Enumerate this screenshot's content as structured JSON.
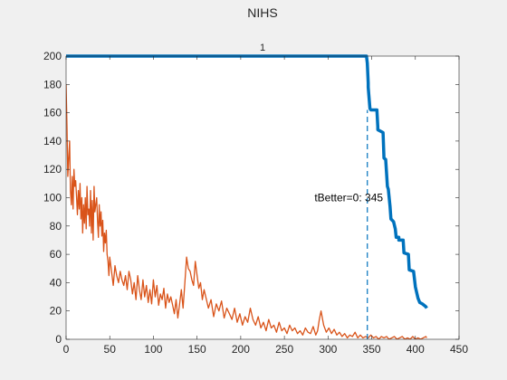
{
  "colors": {
    "background": "#f0f0f0",
    "axes_background": "#ffffff",
    "series_blue": "#0072bd",
    "series_orange": "#d95319",
    "marker_line": "#0072bd",
    "axis": "#262626"
  },
  "chart_data": {
    "type": "line",
    "title": "NIHS",
    "subtitle": "1",
    "xlabel": "",
    "ylabel": "",
    "xlim": [
      0,
      450
    ],
    "ylim": [
      0,
      200
    ],
    "xticks": [
      0,
      50,
      100,
      150,
      200,
      250,
      300,
      350,
      400,
      450
    ],
    "yticks": [
      0,
      20,
      40,
      60,
      80,
      100,
      120,
      140,
      160,
      180,
      200
    ],
    "xtick_labels": [
      "0",
      "50",
      "100",
      "150",
      "200",
      "250",
      "300",
      "350",
      "400",
      "450"
    ],
    "ytick_labels": [
      "0",
      "20",
      "40",
      "60",
      "80",
      "100",
      "120",
      "140",
      "160",
      "180",
      "200"
    ],
    "grid": false,
    "legend": "none",
    "series": [
      {
        "color": "#0072bd",
        "line_width": "thick",
        "x": [
          0,
          344,
          345,
          346,
          346,
          348,
          349,
          356,
          357,
          357,
          363,
          364,
          366,
          368,
          369,
          371,
          372,
          375,
          377,
          378,
          381,
          381,
          382,
          386,
          387,
          392,
          393,
          398,
          400,
          403,
          405,
          408,
          410,
          412,
          413
        ],
        "y": [
          200,
          200,
          195,
          181,
          178,
          163,
          162,
          162,
          150,
          148,
          146,
          128,
          127,
          108,
          106,
          94,
          85,
          83,
          78,
          72,
          72,
          70,
          70,
          70,
          61,
          60,
          49,
          48,
          37,
          29,
          26,
          25,
          24,
          23,
          22
        ]
      },
      {
        "color": "#d95319",
        "line_width": "thin",
        "x": [
          0,
          1,
          2,
          3,
          4,
          5,
          6,
          7,
          8,
          9,
          10,
          11,
          12,
          13,
          14,
          15,
          16,
          17,
          18,
          19,
          20,
          21,
          22,
          23,
          24,
          25,
          26,
          27,
          28,
          29,
          30,
          31,
          32,
          33,
          34,
          35,
          36,
          37,
          38,
          39,
          40,
          41,
          42,
          43,
          44,
          45,
          46,
          47,
          48,
          49,
          50,
          52,
          54,
          56,
          58,
          60,
          62,
          64,
          66,
          68,
          70,
          72,
          74,
          76,
          78,
          80,
          82,
          84,
          86,
          88,
          90,
          92,
          94,
          96,
          98,
          100,
          102,
          104,
          106,
          108,
          110,
          112,
          114,
          116,
          118,
          120,
          122,
          124,
          126,
          128,
          130,
          132,
          134,
          136,
          138,
          140,
          142,
          144,
          146,
          148,
          150,
          152,
          154,
          156,
          158,
          160,
          163,
          166,
          169,
          172,
          175,
          178,
          181,
          184,
          187,
          190,
          193,
          196,
          199,
          202,
          205,
          208,
          211,
          214,
          217,
          220,
          223,
          226,
          229,
          232,
          235,
          238,
          241,
          244,
          247,
          250,
          253,
          256,
          259,
          262,
          265,
          268,
          271,
          274,
          277,
          280,
          283,
          286,
          288,
          290,
          292,
          295,
          298,
          301,
          304,
          307,
          310,
          313,
          316,
          319,
          322,
          325,
          328,
          331,
          334,
          337,
          340,
          343,
          346,
          349,
          352,
          355,
          358,
          361,
          364,
          367,
          370,
          373,
          376,
          379,
          382,
          385,
          388,
          391,
          394,
          397,
          400,
          403,
          406,
          409,
          412,
          413
        ],
        "y": [
          180,
          150,
          115,
          128,
          140,
          105,
          95,
          115,
          92,
          120,
          108,
          112,
          100,
          88,
          105,
          92,
          110,
          85,
          100,
          75,
          95,
          82,
          100,
          78,
          108,
          88,
          92,
          80,
          105,
          75,
          98,
          70,
          108,
          90,
          95,
          100,
          84,
          72,
          95,
          80,
          90,
          73,
          84,
          62,
          75,
          68,
          77,
          60,
          55,
          45,
          58,
          48,
          38,
          52,
          45,
          40,
          48,
          42,
          38,
          45,
          35,
          48,
          42,
          32,
          40,
          28,
          45,
          35,
          28,
          42,
          30,
          38,
          26,
          35,
          25,
          42,
          30,
          38,
          24,
          32,
          28,
          36,
          22,
          32,
          26,
          30,
          24,
          18,
          28,
          15,
          25,
          35,
          22,
          40,
          58,
          50,
          48,
          42,
          38,
          55,
          45,
          36,
          40,
          28,
          35,
          30,
          22,
          28,
          16,
          25,
          20,
          27,
          15,
          22,
          18,
          14,
          22,
          12,
          18,
          10,
          16,
          12,
          22,
          14,
          10,
          16,
          8,
          12,
          6,
          14,
          8,
          10,
          5,
          12,
          6,
          8,
          4,
          10,
          6,
          8,
          4,
          6,
          3,
          8,
          5,
          4,
          9,
          3,
          6,
          14,
          20,
          10,
          5,
          8,
          4,
          7,
          3,
          5,
          2,
          4,
          1,
          3,
          2,
          5,
          1,
          3,
          1,
          2,
          1,
          3,
          1,
          2,
          0,
          2,
          1,
          2,
          0,
          1,
          2,
          0,
          1,
          2,
          0,
          1,
          0,
          2,
          0,
          1,
          0,
          1,
          2,
          1
        ]
      }
    ],
    "vline": {
      "x": 345,
      "y_from": 0,
      "y_to": 162,
      "style": "dashed",
      "color": "#0072bd"
    },
    "annotation": {
      "text": "tBetter=0: 345",
      "x": 300,
      "y": 100
    }
  }
}
